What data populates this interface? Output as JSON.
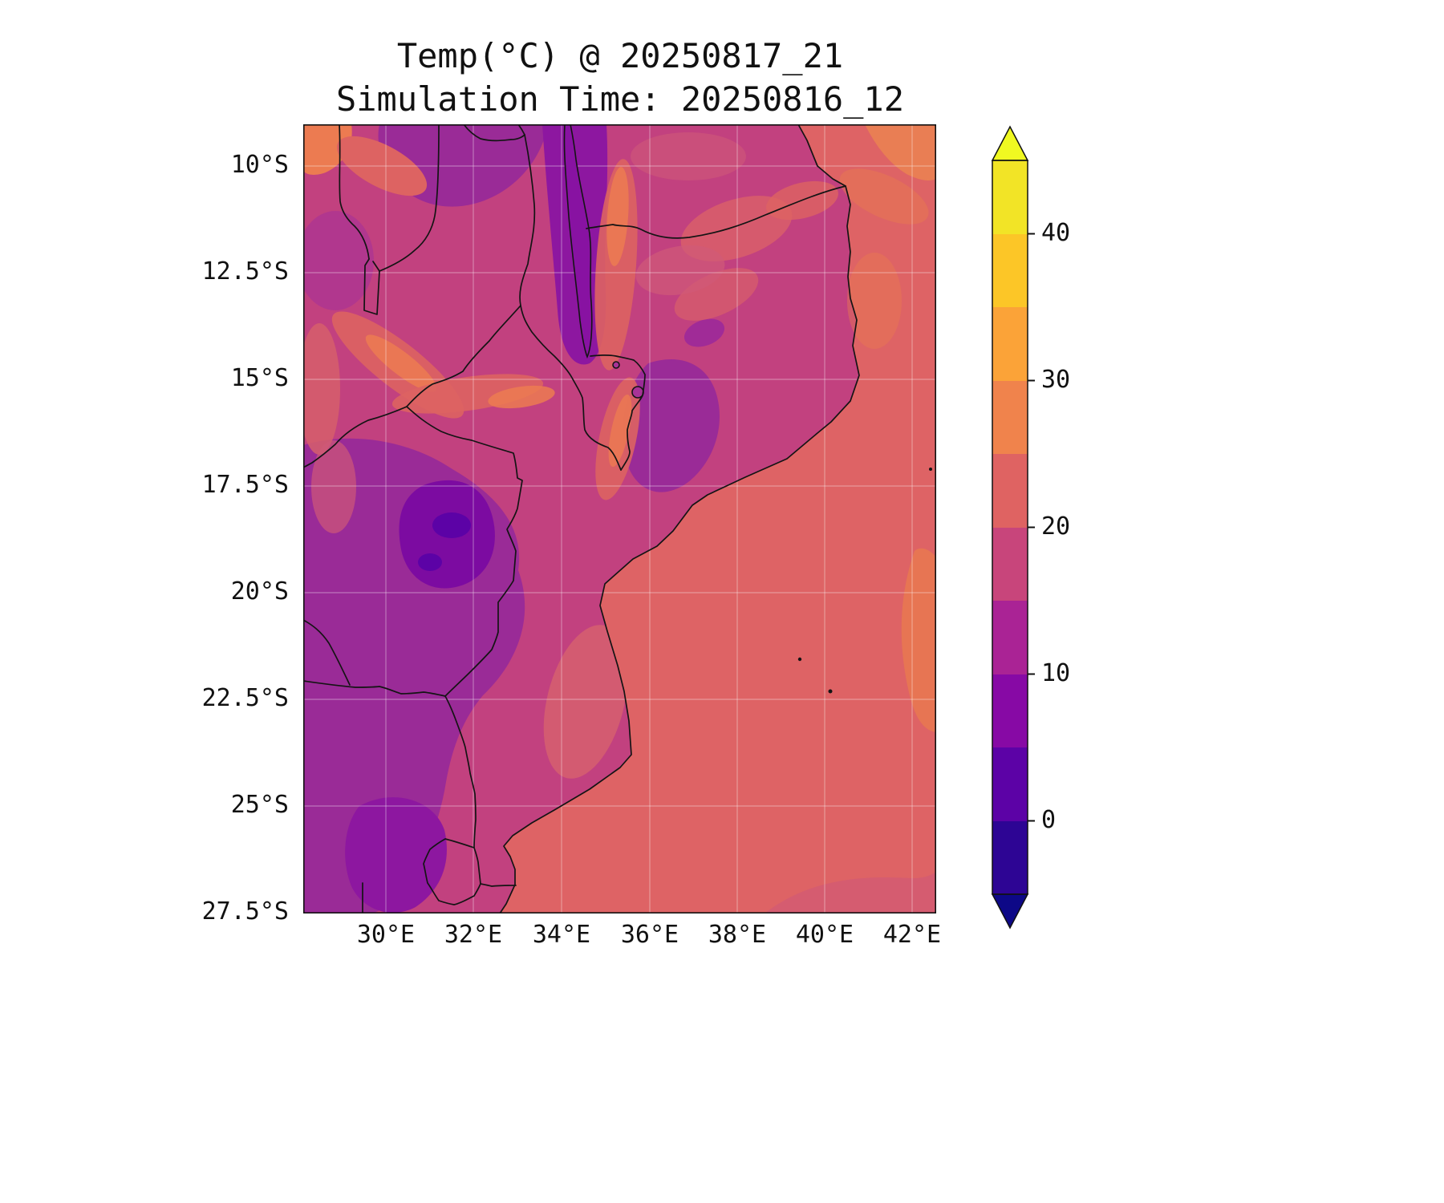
{
  "figure": {
    "title": "Temp(°C) @ 20250817_21",
    "subtitle": "Simulation Time: 20250816_12"
  },
  "map": {
    "x_ticks": [
      "30°E",
      "32°E",
      "34°E",
      "36°E",
      "38°E",
      "40°E",
      "42°E"
    ],
    "y_ticks": [
      "10°S",
      "12.5°S",
      "15°S",
      "17.5°S",
      "20°S",
      "22.5°S",
      "25°S",
      "27.5°S"
    ]
  },
  "colorbar": {
    "tick_labels": [
      "40",
      "30",
      "20",
      "10",
      "0"
    ],
    "band_colors_top_to_bottom": [
      "#f2e426",
      "#fcc627",
      "#fba338",
      "#f0834c",
      "#df6362",
      "#c8457b",
      "#aa2395",
      "#8709a5",
      "#5c02a6",
      "#2d0594"
    ],
    "over_color": "#f0f921",
    "under_color": "#0d0887"
  },
  "chart_data": {
    "type": "heatmap",
    "title": "Temp(°C) @ 20250817_21",
    "subtitle": "Simulation Time: 20250816_12",
    "variable": "Temp",
    "units": "°C",
    "valid_time": "20250817_21",
    "simulation_time": "20250816_12",
    "colormap": "plasma",
    "extend": "both",
    "levels_c": [
      -5,
      0,
      5,
      10,
      15,
      20,
      25,
      30,
      35,
      40,
      45
    ],
    "colorbar_ticks_c": [
      0,
      10,
      20,
      30,
      40
    ],
    "grid": true,
    "colorbar_position": "right",
    "x_axis": {
      "tick_labels": [
        "30°E",
        "32°E",
        "34°E",
        "36°E",
        "38°E",
        "40°E",
        "42°E"
      ],
      "approx_range_deg_e": [
        28.1,
        42.6
      ]
    },
    "y_axis": {
      "tick_labels": [
        "10°S",
        "12.5°S",
        "15°S",
        "17.5°S",
        "20°S",
        "22.5°S",
        "25°S",
        "27.5°S"
      ],
      "approx_range_deg_s": [
        9.0,
        27.6
      ]
    },
    "region": "Mozambique / Mozambique Channel with national borders overlaid",
    "field_regions": [
      {
        "region": "Mozambique Channel ocean (eastern half of map)",
        "approx_temp_c": 22
      },
      {
        "region": "Mozambique interior lowlands (dominant land color)",
        "approx_temp_c": 17
      },
      {
        "region": "Zimbabwe plateau and SW interior (large purple area)",
        "approx_temp_c": 10
      },
      {
        "region": "Eastern Zimbabwe highland cold cores (~31.5E, 18.5S)",
        "approx_temp_c": 4
      },
      {
        "region": "Southern Tanzania / Malawi highlands and Lake Malawi",
        "approx_temp_c": 12
      },
      {
        "region": "Luangwa and Zambezi valley warm streaks (NW)",
        "approx_temp_c": 24
      },
      {
        "region": "Rift / Shire valley east of Lake Malawi",
        "approx_temp_c": 26
      },
      {
        "region": "Northern coastal Mozambique warm patches",
        "approx_temp_c": 22
      },
      {
        "region": "Warm ocean patches (NE corner and mid right edge)",
        "approx_temp_c": 26
      },
      {
        "region": "South Africa highveld (bottom-left corner)",
        "approx_temp_c": 11
      }
    ]
  }
}
